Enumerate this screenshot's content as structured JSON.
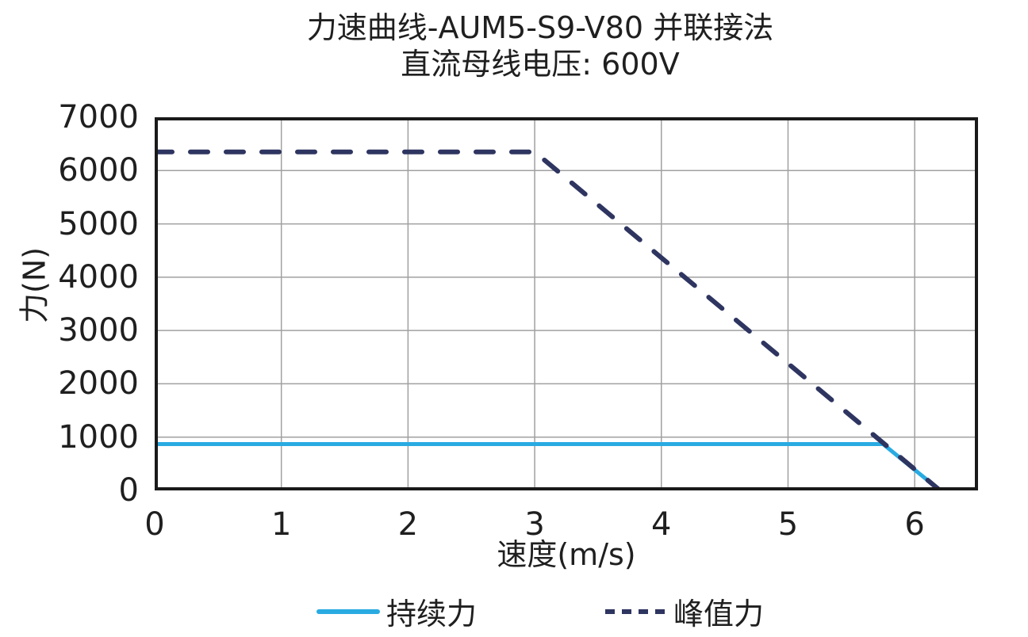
{
  "chart_data": {
    "type": "line",
    "title": "力速曲线-AUM5-S9-V80 并联接法",
    "subtitle": "直流母线电压: 600V",
    "xlabel": "速度(m/s)",
    "ylabel": "力(N)",
    "xlim": [
      0,
      6.5
    ],
    "ylim": [
      0,
      7000
    ],
    "xticks": [
      0,
      1,
      2,
      3,
      4,
      5,
      6
    ],
    "yticks": [
      0,
      1000,
      2000,
      3000,
      4000,
      5000,
      6000,
      7000
    ],
    "grid": true,
    "legend_position": "bottom",
    "series": [
      {
        "name": "持续力",
        "style": "solid",
        "color": "#29abe2",
        "points": [
          [
            0,
            870
          ],
          [
            5.75,
            870
          ],
          [
            6.2,
            0
          ]
        ]
      },
      {
        "name": "峰值力",
        "style": "dashed",
        "color": "#2e3560",
        "points": [
          [
            0,
            6350
          ],
          [
            3.0,
            6350
          ],
          [
            6.2,
            0
          ]
        ]
      }
    ]
  },
  "colors": {
    "background": "#ffffff",
    "text": "#1f1f1f",
    "axis_border": "#1a1a1a",
    "gridline": "#a0a0a0"
  }
}
